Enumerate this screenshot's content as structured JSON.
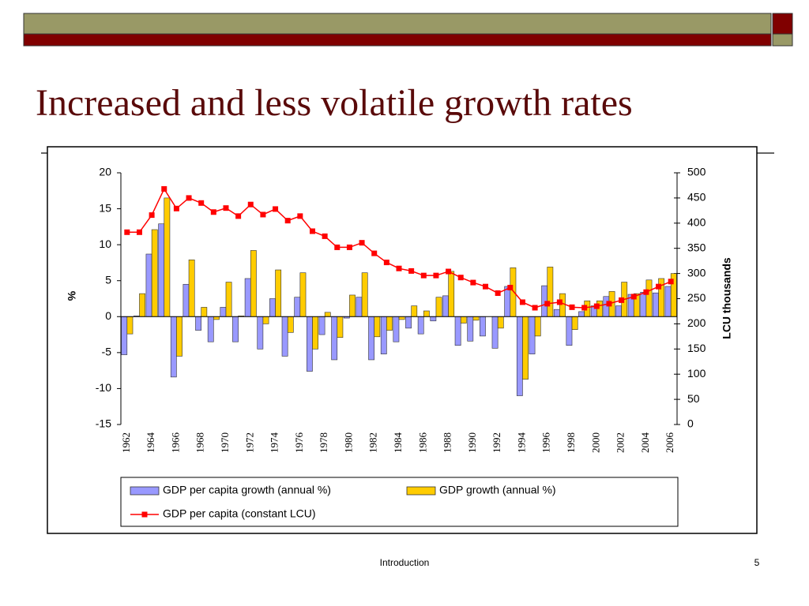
{
  "header": {
    "title": "Increased and less volatile growth rates"
  },
  "footer": {
    "text": "Introduction",
    "page": "5"
  },
  "chart_data": {
    "type": "bar",
    "categories": [
      "1962",
      null,
      "1964",
      null,
      "1966",
      null,
      "1968",
      null,
      "1970",
      null,
      "1972",
      null,
      "1974",
      null,
      "1976",
      null,
      "1978",
      null,
      "1980",
      null,
      "1982",
      null,
      "1984",
      null,
      "1986",
      null,
      "1988",
      null,
      "1990",
      null,
      "1992",
      null,
      "1994",
      null,
      "1996",
      null,
      "1998",
      null,
      "2000",
      null,
      "2002",
      null,
      "2004",
      null,
      "2006"
    ],
    "series": [
      {
        "name": "GDP per capita growth (annual %)",
        "type": "bar",
        "color": "#9999ff",
        "values": [
          -5.3,
          0.1,
          8.7,
          12.9,
          -8.4,
          4.5,
          -1.9,
          -3.5,
          1.3,
          -3.5,
          5.3,
          -4.5,
          2.5,
          -5.5,
          2.7,
          -7.6,
          -2.5,
          -6.0,
          -0.2,
          2.7,
          -6.0,
          -5.2,
          -3.5,
          -1.6,
          -2.4,
          -0.6,
          2.9,
          -4.0,
          -3.4,
          -2.7,
          -4.4,
          4.2,
          -11.0,
          -5.2,
          4.3,
          1.0,
          -4.0,
          0.7,
          1.5,
          2.8,
          1.5,
          3.1,
          3.4,
          3.3,
          4.2
        ]
      },
      {
        "name": "GDP growth (annual %)",
        "type": "bar",
        "color": "#ffcc00",
        "values": [
          -2.4,
          3.2,
          12.1,
          16.5,
          -5.5,
          7.9,
          1.3,
          -0.4,
          4.8,
          0.1,
          9.2,
          -1.0,
          6.5,
          -2.2,
          6.1,
          -4.5,
          0.6,
          -2.9,
          3.0,
          6.1,
          -2.8,
          -1.9,
          -0.4,
          1.5,
          0.8,
          2.7,
          6.3,
          -0.9,
          -0.5,
          0.0,
          -1.6,
          6.8,
          -8.7,
          -2.7,
          6.9,
          3.2,
          -1.8,
          2.2,
          2.2,
          3.5,
          4.8,
          3.2,
          5.1,
          5.3,
          6.0
        ]
      },
      {
        "name": "GDP per capita (constant LCU)",
        "type": "line",
        "axis": "y2",
        "color": "#ff0000",
        "values": [
          382,
          382,
          416,
          468,
          429,
          450,
          440,
          422,
          430,
          414,
          437,
          417,
          428,
          405,
          414,
          384,
          374,
          352,
          352,
          361,
          340,
          322,
          310,
          305,
          296,
          296,
          304,
          292,
          282,
          274,
          261,
          272,
          243,
          232,
          240,
          243,
          233,
          232,
          235,
          240,
          247,
          254,
          263,
          274,
          284
        ]
      }
    ],
    "ylabel": "%",
    "y2label": "LCU thousands",
    "ylim": [
      -15,
      20
    ],
    "yticks": [
      -15,
      -10,
      -5,
      0,
      5,
      10,
      15,
      20
    ],
    "y2lim": [
      0,
      500
    ],
    "y2ticks": [
      0,
      50,
      100,
      150,
      200,
      250,
      300,
      350,
      400,
      450,
      500
    ],
    "legend": "bottom"
  }
}
